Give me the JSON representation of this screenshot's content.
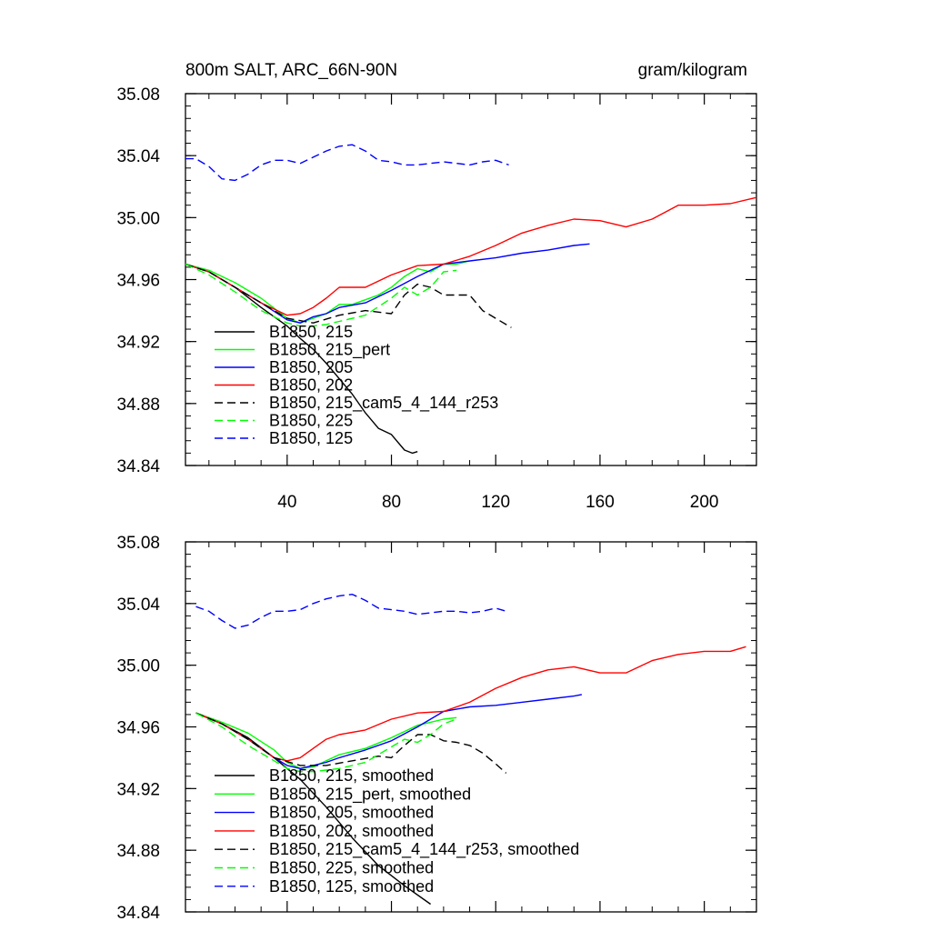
{
  "chart_data": [
    {
      "type": "line",
      "title": "800m SALT, ARC_66N-90N",
      "units": "gram/kilogram",
      "xlim": [
        1,
        220
      ],
      "ylim": [
        34.84,
        35.08
      ],
      "xticks": [
        40,
        80,
        120,
        160,
        200
      ],
      "xtick_labels": [
        "40",
        "80",
        "120",
        "160",
        "200"
      ],
      "yticks": [
        34.84,
        34.88,
        34.92,
        34.96,
        35.0,
        35.04,
        35.08
      ],
      "ytick_labels": [
        "34.84",
        "34.88",
        "34.92",
        "34.96",
        "35.00",
        "35.04",
        "35.08"
      ],
      "legend_position": "lower-left",
      "series": [
        {
          "name": "B1850, 215",
          "color": "#000000",
          "dash": "solid",
          "x": [
            1,
            10,
            20,
            30,
            40,
            45,
            50,
            55,
            60,
            65,
            70,
            75,
            80,
            85,
            88,
            90
          ],
          "y": [
            34.97,
            34.965,
            34.955,
            34.942,
            34.93,
            34.922,
            34.915,
            34.906,
            34.896,
            34.886,
            34.874,
            34.864,
            34.86,
            34.85,
            34.848,
            34.849
          ]
        },
        {
          "name": "B1850, 215_pert",
          "color": "#00ff00",
          "dash": "solid",
          "x": [
            1,
            10,
            20,
            30,
            40,
            45,
            50,
            55,
            60,
            65,
            70,
            75,
            80,
            85,
            90,
            95,
            100,
            105,
            110
          ],
          "y": [
            34.97,
            34.966,
            34.958,
            34.948,
            34.935,
            34.932,
            34.935,
            34.938,
            34.944,
            34.944,
            34.947,
            34.95,
            34.955,
            34.962,
            34.967,
            34.965,
            34.97,
            34.97,
            34.972
          ]
        },
        {
          "name": "B1850, 205",
          "color": "#0000ff",
          "dash": "solid",
          "x": [
            1,
            10,
            20,
            30,
            40,
            45,
            50,
            55,
            60,
            70,
            80,
            90,
            100,
            110,
            120,
            130,
            140,
            150,
            156
          ],
          "y": [
            34.97,
            34.965,
            34.955,
            34.945,
            34.934,
            34.932,
            34.936,
            34.938,
            34.942,
            34.945,
            34.953,
            34.962,
            34.97,
            34.972,
            34.974,
            34.977,
            34.979,
            34.982,
            34.983
          ]
        },
        {
          "name": "B1850, 202",
          "color": "#ff0000",
          "dash": "solid",
          "x": [
            1,
            10,
            20,
            30,
            40,
            45,
            50,
            55,
            60,
            70,
            80,
            90,
            100,
            110,
            120,
            130,
            140,
            150,
            160,
            170,
            180,
            190,
            200,
            210,
            220
          ],
          "y": [
            34.97,
            34.965,
            34.955,
            34.945,
            34.937,
            34.938,
            34.942,
            34.948,
            34.955,
            34.955,
            34.963,
            34.969,
            34.97,
            34.975,
            34.982,
            34.99,
            34.995,
            34.999,
            34.998,
            34.994,
            34.999,
            35.008,
            35.008,
            35.009,
            35.013
          ]
        },
        {
          "name": "B1850, 215_cam5_4_144_r253",
          "color": "#000000",
          "dash": "dashed",
          "x": [
            1,
            10,
            20,
            30,
            40,
            50,
            60,
            70,
            80,
            85,
            90,
            95,
            100,
            105,
            110,
            115,
            120,
            126
          ],
          "y": [
            34.97,
            34.965,
            34.955,
            34.945,
            34.935,
            34.932,
            34.937,
            34.94,
            34.938,
            34.95,
            34.957,
            34.955,
            34.95,
            34.95,
            34.95,
            34.94,
            34.935,
            34.929
          ]
        },
        {
          "name": "B1850, 225",
          "color": "#00ff00",
          "dash": "dashed",
          "x": [
            1,
            10,
            20,
            30,
            40,
            45,
            50,
            55,
            60,
            70,
            80,
            85,
            90,
            95,
            100,
            105
          ],
          "y": [
            34.97,
            34.963,
            34.952,
            34.94,
            34.932,
            34.93,
            34.93,
            34.931,
            34.933,
            34.937,
            34.948,
            34.955,
            34.95,
            34.955,
            34.965,
            34.966
          ]
        },
        {
          "name": "B1850, 125",
          "color": "#0000ff",
          "dash": "dashed",
          "x": [
            1,
            5,
            10,
            15,
            20,
            25,
            30,
            35,
            40,
            45,
            50,
            55,
            60,
            65,
            70,
            75,
            80,
            85,
            90,
            95,
            100,
            105,
            110,
            115,
            120,
            125
          ],
          "y": [
            35.038,
            35.038,
            35.033,
            35.025,
            35.024,
            35.028,
            35.034,
            35.037,
            35.037,
            35.035,
            35.039,
            35.043,
            35.046,
            35.047,
            35.043,
            35.037,
            35.036,
            35.034,
            35.034,
            35.035,
            35.036,
            35.035,
            35.034,
            35.036,
            35.037,
            35.034
          ]
        }
      ]
    },
    {
      "type": "line",
      "title": "",
      "xlim": [
        1,
        220
      ],
      "ylim": [
        34.84,
        35.08
      ],
      "xticks": [
        40,
        80,
        120,
        160,
        200
      ],
      "yticks": [
        34.84,
        34.88,
        34.92,
        34.96,
        35.0,
        35.04,
        35.08
      ],
      "ytick_labels": [
        "34.84",
        "34.88",
        "34.92",
        "34.96",
        "35.00",
        "35.04",
        "35.08"
      ],
      "legend_position": "lower-left",
      "series": [
        {
          "name": "B1850, 215, smoothed",
          "color": "#000000",
          "dash": "solid",
          "x": [
            5,
            15,
            25,
            35,
            45,
            55,
            65,
            75,
            85,
            95
          ],
          "y": [
            34.969,
            34.962,
            34.953,
            34.94,
            34.926,
            34.908,
            34.888,
            34.87,
            34.857,
            34.845
          ]
        },
        {
          "name": "B1850, 215_pert, smoothed",
          "color": "#00ff00",
          "dash": "solid",
          "x": [
            5,
            15,
            25,
            35,
            40,
            45,
            50,
            55,
            60,
            70,
            80,
            90,
            95,
            100,
            105
          ],
          "y": [
            34.969,
            34.963,
            34.956,
            34.945,
            34.937,
            34.933,
            34.934,
            34.938,
            34.942,
            34.946,
            34.953,
            34.961,
            34.963,
            34.965,
            34.966
          ]
        },
        {
          "name": "B1850, 205, smoothed",
          "color": "#0000ff",
          "dash": "solid",
          "x": [
            5,
            15,
            25,
            35,
            40,
            45,
            50,
            55,
            60,
            70,
            80,
            90,
            100,
            110,
            120,
            130,
            140,
            150,
            153
          ],
          "y": [
            34.969,
            34.962,
            34.952,
            34.94,
            34.935,
            34.933,
            34.935,
            34.937,
            34.94,
            34.945,
            34.951,
            34.96,
            34.97,
            34.973,
            34.974,
            34.976,
            34.978,
            34.98,
            34.981
          ]
        },
        {
          "name": "B1850, 202, smoothed",
          "color": "#ff0000",
          "dash": "solid",
          "x": [
            5,
            15,
            25,
            35,
            40,
            45,
            50,
            55,
            60,
            70,
            80,
            90,
            100,
            110,
            120,
            130,
            140,
            150,
            160,
            170,
            180,
            190,
            200,
            210,
            216
          ],
          "y": [
            34.969,
            34.962,
            34.952,
            34.94,
            34.938,
            34.94,
            34.946,
            34.952,
            34.955,
            34.958,
            34.965,
            34.969,
            34.97,
            34.976,
            34.985,
            34.992,
            34.997,
            34.999,
            34.995,
            34.995,
            35.003,
            35.007,
            35.009,
            35.009,
            35.012
          ]
        },
        {
          "name": "B1850, 215_cam5_4_144_r253, smoothed",
          "color": "#000000",
          "dash": "dashed",
          "x": [
            5,
            15,
            25,
            35,
            45,
            55,
            65,
            75,
            80,
            85,
            90,
            95,
            100,
            105,
            110,
            115,
            120,
            124
          ],
          "y": [
            34.969,
            34.962,
            34.952,
            34.94,
            34.935,
            34.935,
            34.938,
            34.941,
            34.94,
            34.948,
            34.955,
            34.955,
            34.951,
            34.95,
            34.948,
            34.943,
            34.936,
            34.93
          ]
        },
        {
          "name": "B1850, 225, smoothed",
          "color": "#00ff00",
          "dash": "dashed",
          "x": [
            5,
            15,
            25,
            35,
            40,
            45,
            50,
            55,
            60,
            70,
            80,
            85,
            90,
            95,
            100,
            105
          ],
          "y": [
            34.969,
            34.96,
            34.948,
            34.938,
            34.933,
            34.931,
            34.931,
            34.932,
            34.933,
            34.937,
            34.947,
            34.952,
            34.95,
            34.955,
            34.962,
            34.965
          ]
        },
        {
          "name": "B1850, 125, smoothed",
          "color": "#0000ff",
          "dash": "dashed",
          "x": [
            5,
            10,
            15,
            20,
            25,
            30,
            35,
            40,
            45,
            50,
            55,
            60,
            65,
            70,
            75,
            80,
            85,
            90,
            95,
            100,
            105,
            110,
            115,
            120,
            124
          ],
          "y": [
            35.038,
            35.035,
            35.029,
            35.024,
            35.026,
            35.031,
            35.035,
            35.035,
            35.036,
            35.04,
            35.043,
            35.045,
            35.046,
            35.042,
            35.037,
            35.036,
            35.035,
            35.033,
            35.034,
            35.035,
            35.035,
            35.034,
            35.035,
            35.037,
            35.035
          ]
        }
      ]
    }
  ]
}
